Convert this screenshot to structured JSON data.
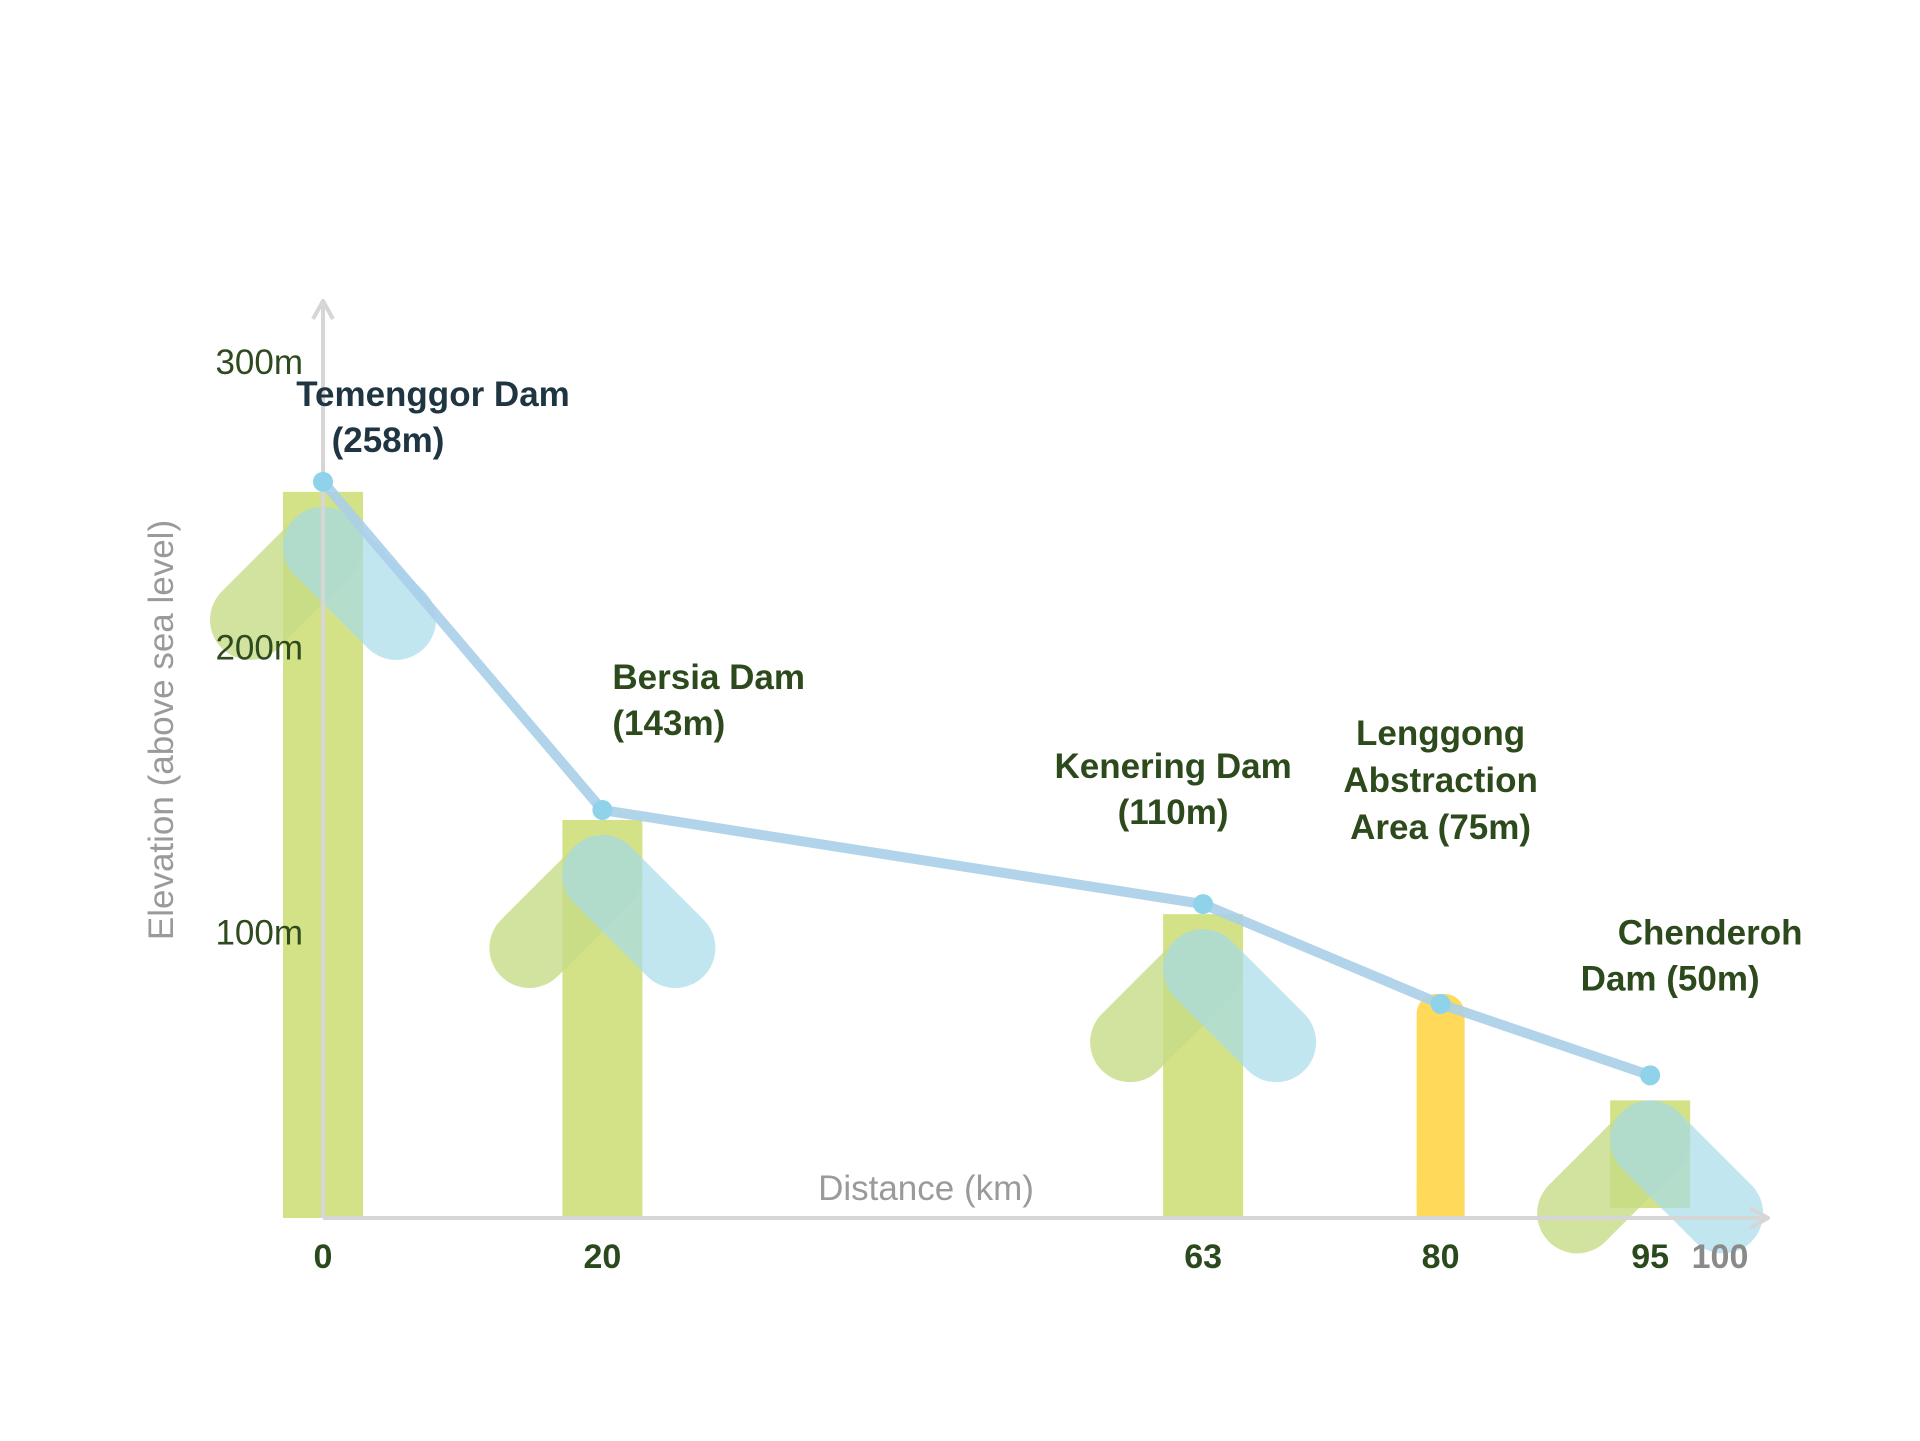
{
  "chart_data": {
    "type": "line",
    "xlabel": "Distance (km)",
    "ylabel": "Elevation (above sea level)",
    "xlim": [
      0,
      100
    ],
    "ylim": [
      0,
      300
    ],
    "x_ticks": [
      "0",
      "20",
      "63",
      "80",
      "95",
      "100"
    ],
    "y_ticks": [
      "100m",
      "200m",
      "300m"
    ],
    "series": [
      {
        "points": [
          {
            "x": 0,
            "y": 258
          },
          {
            "x": 20,
            "y": 143
          },
          {
            "x": 63,
            "y": 110
          },
          {
            "x": 80,
            "y": 75
          },
          {
            "x": 95,
            "y": 50
          }
        ]
      }
    ],
    "annotations": [
      {
        "x": 0,
        "y": 258,
        "lines": [
          "Temenggor Dam",
          "(258m)"
        ],
        "kind": "dam"
      },
      {
        "x": 20,
        "y": 143,
        "lines": [
          "Bersia Dam",
          "(143m)"
        ],
        "kind": "dam"
      },
      {
        "x": 63,
        "y": 110,
        "lines": [
          "Kenering Dam",
          "(110m)"
        ],
        "kind": "dam"
      },
      {
        "x": 80,
        "y": 75,
        "lines": [
          "Lenggong",
          "Abstraction",
          "Area (75m)"
        ],
        "kind": "abstraction"
      },
      {
        "x": 95,
        "y": 50,
        "lines": [
          "Chenderoh",
          "Dam (50m)"
        ],
        "kind": "dam"
      }
    ],
    "colors": {
      "line": "#a9cfe9",
      "point": "#8fd3ea",
      "dam_bar": "#d3e286",
      "abstraction_bar": "#ffd95a",
      "arrow_left": "#c6dd86",
      "arrow_right": "#a8dcea",
      "axis": "#d6d6d6"
    }
  }
}
